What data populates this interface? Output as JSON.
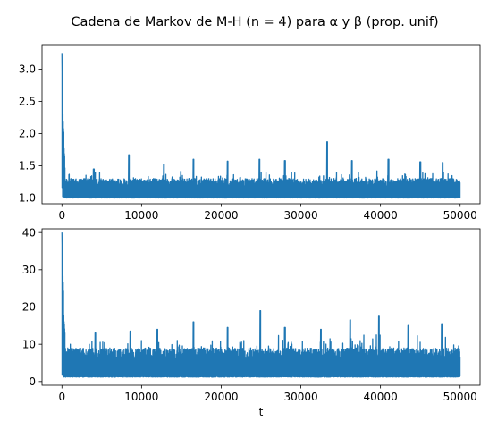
{
  "title": "Cadena de Markov de M-H (n = 4) para α y β (prop. unif)",
  "colors": {
    "series": "#1f77b4",
    "axes": "#000000",
    "background": "#ffffff"
  },
  "chart_data": [
    {
      "type": "line",
      "series_name": "alpha trace",
      "xlim": [
        -2500,
        52500
      ],
      "ylim": [
        0.91,
        3.38
      ],
      "xticks": [
        0,
        10000,
        20000,
        30000,
        40000,
        50000
      ],
      "xtick_labels": [
        "0",
        "10000",
        "20000",
        "30000",
        "40000",
        "50000"
      ],
      "yticks": [
        1.0,
        1.5,
        2.0,
        2.5,
        3.0
      ],
      "ytick_labels": [
        "1.0",
        "1.5",
        "2.0",
        "2.5",
        "3.0"
      ],
      "xlabel": "",
      "grid": false,
      "samples": 50000,
      "initial_value": 3.25,
      "baseline": 1.0,
      "typical_upper": 1.3,
      "spikes": [
        [
          4000,
          1.45
        ],
        [
          8400,
          1.67
        ],
        [
          12800,
          1.52
        ],
        [
          16500,
          1.6
        ],
        [
          20800,
          1.57
        ],
        [
          24800,
          1.6
        ],
        [
          28000,
          1.58
        ],
        [
          33300,
          1.87
        ],
        [
          36400,
          1.58
        ],
        [
          41000,
          1.6
        ],
        [
          45000,
          1.56
        ],
        [
          47800,
          1.55
        ]
      ]
    },
    {
      "type": "line",
      "series_name": "beta trace",
      "xlim": [
        -2500,
        52500
      ],
      "ylim": [
        -1.0,
        41.0
      ],
      "xticks": [
        0,
        10000,
        20000,
        30000,
        40000,
        50000
      ],
      "xtick_labels": [
        "0",
        "10000",
        "20000",
        "30000",
        "40000",
        "50000"
      ],
      "yticks": [
        0,
        10,
        20,
        30,
        40
      ],
      "ytick_labels": [
        "0",
        "10",
        "20",
        "30",
        "40"
      ],
      "xlabel": "t",
      "grid": false,
      "samples": 50000,
      "initial_value": 40,
      "baseline": 1.2,
      "typical_upper": 9,
      "spikes": [
        [
          4200,
          13
        ],
        [
          8600,
          13.5
        ],
        [
          12000,
          14
        ],
        [
          16500,
          16
        ],
        [
          20800,
          14.5
        ],
        [
          24900,
          19
        ],
        [
          28000,
          14.5
        ],
        [
          32500,
          14
        ],
        [
          36200,
          16.5
        ],
        [
          39800,
          17.5
        ],
        [
          43500,
          15
        ],
        [
          47700,
          15.5
        ]
      ]
    }
  ]
}
